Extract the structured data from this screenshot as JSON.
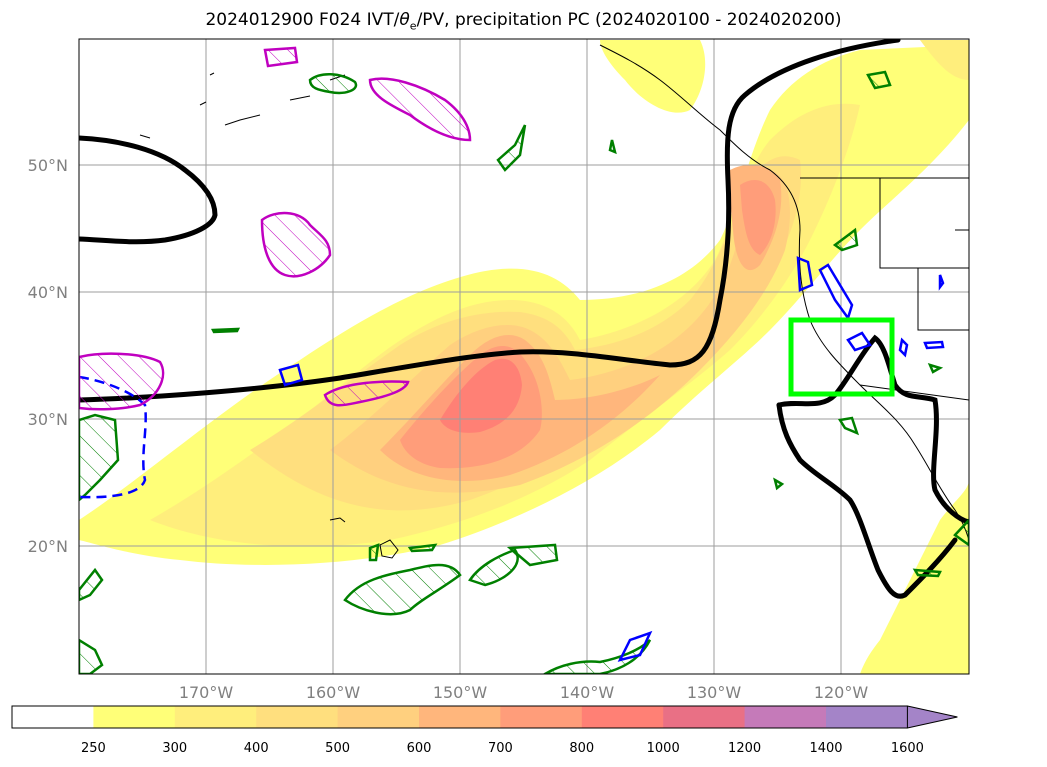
{
  "title": {
    "prefix": "2024012900 F024 IVT/",
    "theta": "θ",
    "sub": "e",
    "suffix": "/PV, precipitation PC (2024020100 - 2024020200)"
  },
  "map": {
    "lat_labels": [
      "50°N",
      "40°N",
      "30°N",
      "20°N"
    ],
    "lon_labels": [
      "170°W",
      "160°W",
      "150°W",
      "140°W",
      "130°W",
      "120°W"
    ],
    "lat_values": [
      50,
      40,
      30,
      20
    ],
    "lon_values": [
      -170,
      -160,
      -150,
      -140,
      -130,
      -120
    ],
    "extent": {
      "lon_min": -180,
      "lon_max": -110,
      "lat_min": 10,
      "lat_max": 60
    }
  },
  "colorbar": {
    "levels": [
      "250",
      "300",
      "400",
      "500",
      "600",
      "700",
      "800",
      "1000",
      "1200",
      "1400",
      "1600"
    ],
    "colors": [
      "#ffffff",
      "#ffff78",
      "#ffee7c",
      "#ffdf7e",
      "#ffd07f",
      "#ffb67c",
      "#ff9d7a",
      "#ff8075",
      "#e97085",
      "#c57ab9",
      "#a484c8"
    ],
    "extend": "max"
  },
  "colors": {
    "theta_e_contour": "#000000",
    "pv_positive": "#008000",
    "pv_negative": "#0000ff",
    "pv_magenta": "#c000c0",
    "target_box": "#00ff00"
  }
}
